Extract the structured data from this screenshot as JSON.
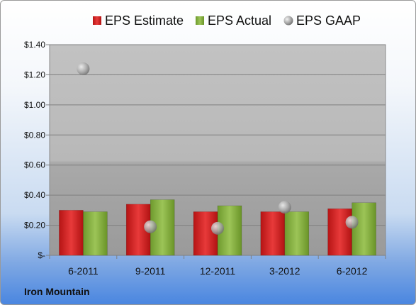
{
  "chart_data": {
    "type": "bar",
    "categories": [
      "6-2011",
      "9-2011",
      "12-2011",
      "3-2012",
      "6-2012"
    ],
    "series": [
      {
        "name": "EPS Estimate",
        "kind": "bar",
        "color": "#d42828",
        "values": [
          0.3,
          0.34,
          0.29,
          0.29,
          0.31
        ]
      },
      {
        "name": "EPS Actual",
        "kind": "bar",
        "color": "#8ab541",
        "values": [
          0.29,
          0.37,
          0.33,
          0.29,
          0.35
        ]
      },
      {
        "name": "EPS GAAP",
        "kind": "scatter",
        "color": "#a6a6a6",
        "values": [
          1.24,
          0.19,
          0.18,
          0.32,
          0.22
        ]
      }
    ],
    "y_ticks": [
      {
        "value": 0,
        "label": "$-"
      },
      {
        "value": 0.2,
        "label": "$0.20"
      },
      {
        "value": 0.4,
        "label": "$0.40"
      },
      {
        "value": 0.6,
        "label": "$0.60"
      },
      {
        "value": 0.8,
        "label": "$0.80"
      },
      {
        "value": 1.0,
        "label": "$1.00"
      },
      {
        "value": 1.2,
        "label": "$1.20"
      },
      {
        "value": 1.4,
        "label": "$1.40"
      }
    ],
    "ylim": [
      0,
      1.4
    ],
    "grid": true,
    "legend_position": "top"
  },
  "footer": {
    "company": "Iron Mountain"
  }
}
